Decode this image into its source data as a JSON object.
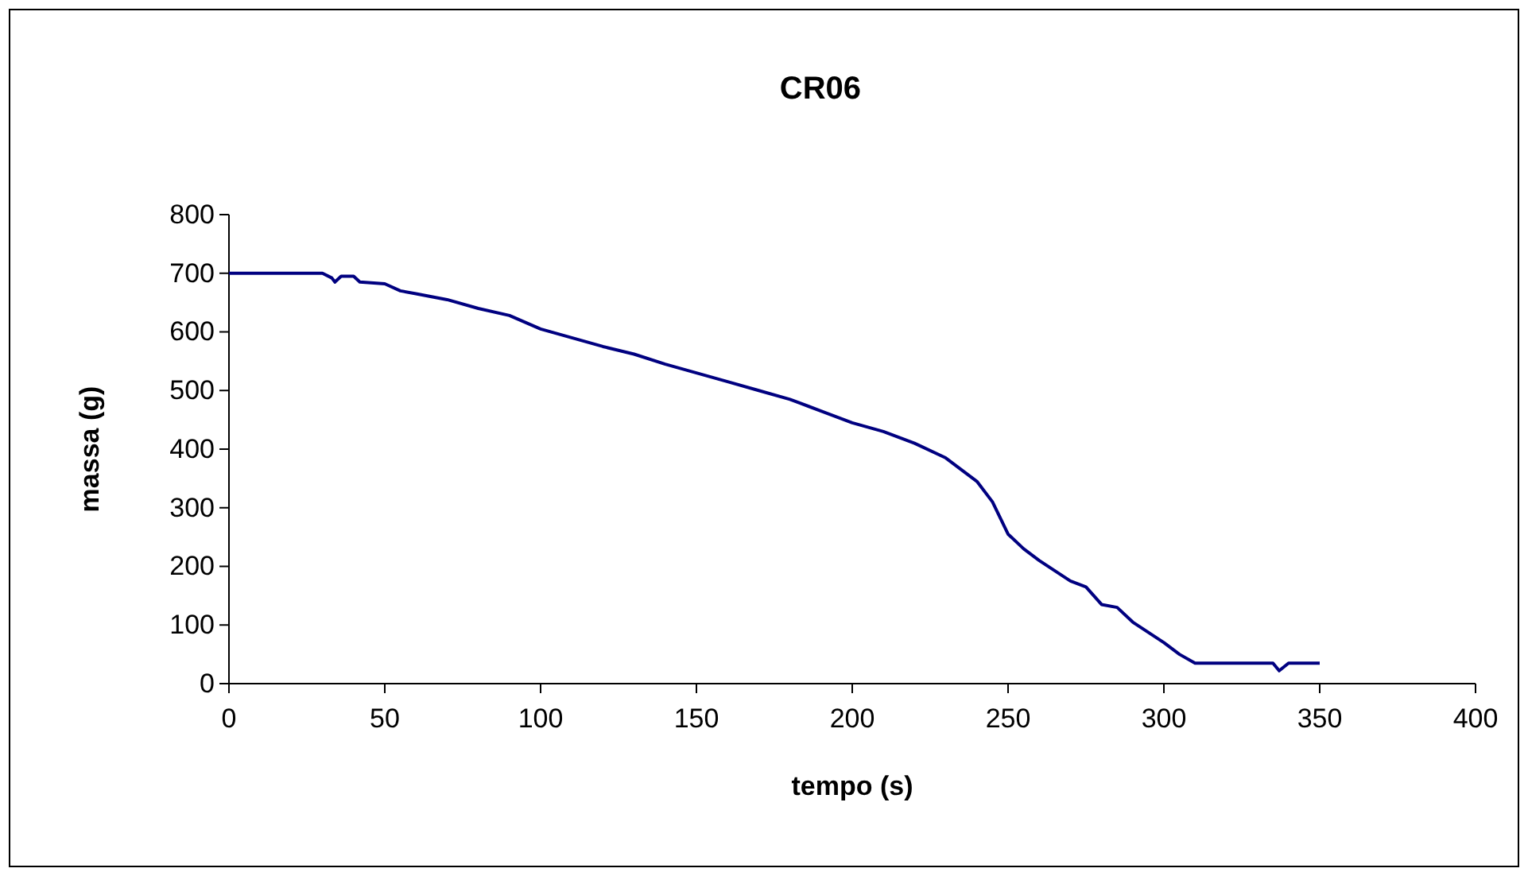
{
  "chart_data": {
    "type": "line",
    "title": "CR06",
    "xlabel": "tempo (s)",
    "ylabel": "massa (g)",
    "xlim": [
      0,
      400
    ],
    "xticks": [
      0,
      50,
      100,
      150,
      200,
      250,
      300,
      350,
      400
    ],
    "ylim": [
      0,
      800
    ],
    "yticks": [
      0,
      100,
      200,
      300,
      400,
      500,
      600,
      700,
      800
    ],
    "grid": false,
    "marker": "none",
    "line_style": "solid",
    "series": [
      {
        "color": "#000080",
        "x": [
          0,
          30,
          33,
          34,
          36,
          40,
          42,
          50,
          55,
          60,
          70,
          80,
          90,
          100,
          110,
          120,
          130,
          140,
          150,
          160,
          170,
          180,
          190,
          200,
          210,
          220,
          230,
          240,
          245,
          250,
          255,
          260,
          270,
          275,
          280,
          285,
          290,
          300,
          305,
          310,
          320,
          335,
          337,
          340,
          350
        ],
        "values": [
          700,
          700,
          692,
          685,
          695,
          695,
          685,
          682,
          670,
          665,
          655,
          640,
          628,
          605,
          590,
          575,
          562,
          545,
          530,
          515,
          500,
          485,
          465,
          445,
          430,
          410,
          385,
          345,
          310,
          255,
          230,
          210,
          175,
          165,
          135,
          130,
          105,
          70,
          50,
          35,
          35,
          35,
          22,
          35,
          35
        ]
      }
    ]
  }
}
